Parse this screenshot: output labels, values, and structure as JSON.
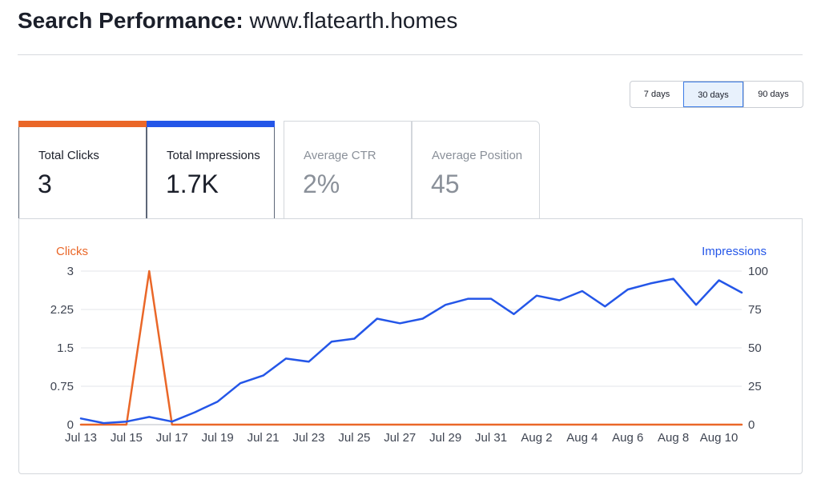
{
  "header": {
    "title_prefix": "Search Performance:",
    "site": "www.flatearth.homes"
  },
  "date_range": {
    "options": [
      "7 days",
      "30 days",
      "90 days"
    ],
    "selected": "30 days"
  },
  "metrics": [
    {
      "label": "Total Clicks",
      "value": "3",
      "selected": true,
      "color": "#ea6728"
    },
    {
      "label": "Total Impressions",
      "value": "1.7K",
      "selected": true,
      "color": "#2456e8"
    },
    {
      "label": "Average CTR",
      "value": "2%",
      "selected": false
    },
    {
      "label": "Average Position",
      "value": "45",
      "selected": false
    }
  ],
  "chart_data": {
    "type": "line",
    "x": [
      "Jul 13",
      "Jul 14",
      "Jul 15",
      "Jul 16",
      "Jul 17",
      "Jul 18",
      "Jul 19",
      "Jul 20",
      "Jul 21",
      "Jul 22",
      "Jul 23",
      "Jul 24",
      "Jul 25",
      "Jul 26",
      "Jul 27",
      "Jul 28",
      "Jul 29",
      "Jul 30",
      "Jul 31",
      "Aug 1",
      "Aug 2",
      "Aug 3",
      "Aug 4",
      "Aug 5",
      "Aug 6",
      "Aug 7",
      "Aug 8",
      "Aug 9",
      "Aug 10",
      "Aug 11"
    ],
    "x_tick_labels": [
      "Jul 13",
      "Jul 15",
      "Jul 17",
      "Jul 19",
      "Jul 21",
      "Jul 23",
      "Jul 25",
      "Jul 27",
      "Jul 29",
      "Jul 31",
      "Aug 2",
      "Aug 4",
      "Aug 6",
      "Aug 8",
      "Aug 10"
    ],
    "series": [
      {
        "name": "Clicks",
        "axis": "left",
        "color": "#ea6728",
        "values": [
          0,
          0,
          0,
          3,
          0,
          0,
          0,
          0,
          0,
          0,
          0,
          0,
          0,
          0,
          0,
          0,
          0,
          0,
          0,
          0,
          0,
          0,
          0,
          0,
          0,
          0,
          0,
          0,
          0,
          0
        ]
      },
      {
        "name": "Impressions",
        "axis": "right",
        "color": "#2456e8",
        "values": [
          4,
          1,
          2,
          5,
          2,
          8,
          15,
          27,
          32,
          43,
          41,
          54,
          56,
          69,
          66,
          69,
          78,
          82,
          82,
          72,
          84,
          81,
          87,
          77,
          88,
          92,
          95,
          78,
          94,
          86
        ]
      }
    ],
    "y_left": {
      "label": "Clicks",
      "ticks": [
        "0",
        "0.75",
        "1.5",
        "2.25",
        "3"
      ],
      "range": [
        0,
        3
      ],
      "color": "#ea6728"
    },
    "y_right": {
      "label": "Impressions",
      "ticks": [
        "0",
        "25",
        "50",
        "75",
        "100"
      ],
      "range": [
        0,
        100
      ],
      "color": "#2456e8"
    },
    "grid": true
  }
}
